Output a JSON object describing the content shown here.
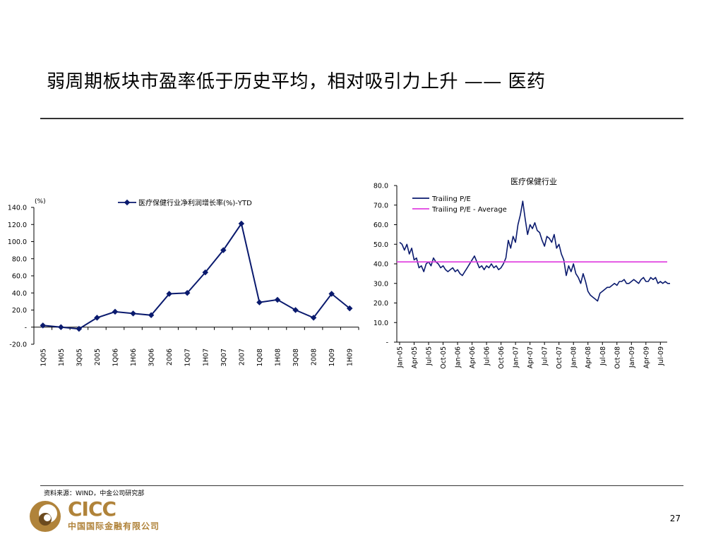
{
  "slide": {
    "title": "弱周期板块市盈率低于历史平均，相对吸引力上升 —— 医药",
    "source": "资料来源：WIND，中金公司研究部",
    "page_number": "27",
    "logo_text": "CICC",
    "logo_cn": "中国国际金融有限公司"
  },
  "colors": {
    "navy": "#0a1a6e",
    "magenta": "#e040e0",
    "logo_gold": "#b0833a",
    "logo_dark": "#6b4a1e"
  },
  "chart_data": [
    {
      "type": "line",
      "title": "",
      "y_unit_label": "(%)",
      "legend_position": "top",
      "categories": [
        "1Q05",
        "1H05",
        "3Q05",
        "2005",
        "1Q06",
        "1H06",
        "3Q06",
        "2006",
        "1Q07",
        "1H07",
        "3Q07",
        "2007",
        "1Q08",
        "1H08",
        "3Q08",
        "2008",
        "1Q09",
        "1H09"
      ],
      "series": [
        {
          "name": "医疗保健行业净利润增长率(%)-YTD",
          "color": "#0a1a6e",
          "values": [
            2,
            0,
            -2,
            11,
            18,
            16,
            14,
            39,
            40,
            64,
            90,
            121,
            29,
            32,
            20,
            11,
            39,
            22
          ]
        }
      ],
      "ylim": [
        -20,
        140
      ],
      "yticks": [
        "-20.0",
        "-",
        "20.0",
        "40.0",
        "60.0",
        "80.0",
        "100.0",
        "120.0",
        "140.0"
      ],
      "ytick_values": [
        -20,
        0,
        20,
        40,
        60,
        80,
        100,
        120,
        140
      ],
      "grid": false
    },
    {
      "type": "line",
      "title": "医疗保健行业",
      "legend_position": "top",
      "x_labels": [
        "Jan-05",
        "Apr-05",
        "Jul-05",
        "Oct-05",
        "Jan-06",
        "Apr-06",
        "Jul-06",
        "Oct-06",
        "Jan-07",
        "Apr-07",
        "Jul-07",
        "Oct-07",
        "Jan-08",
        "Apr-08",
        "Jul-08",
        "Oct-08",
        "Jan-09",
        "Apr-09",
        "Jul-09"
      ],
      "ylim": [
        0,
        80
      ],
      "yticks": [
        "-",
        "10.0",
        "20.0",
        "30.0",
        "40.0",
        "50.0",
        "60.0",
        "70.0",
        "80.0"
      ],
      "ytick_values": [
        0,
        10,
        20,
        30,
        40,
        50,
        60,
        70,
        80
      ],
      "grid": false,
      "series": [
        {
          "name": "Trailing P/E",
          "color": "#0a1a6e",
          "x_months": [
            0,
            0.5,
            1,
            1.5,
            2,
            2.5,
            3,
            3.5,
            4,
            4.5,
            5,
            5.5,
            6,
            6.5,
            7,
            7.5,
            8,
            8.5,
            9,
            9.5,
            10,
            10.5,
            11,
            11.5,
            12,
            12.5,
            13,
            13.5,
            14,
            14.5,
            15,
            15.5,
            16,
            16.5,
            17,
            17.5,
            18,
            18.5,
            19,
            19.5,
            20,
            20.5,
            21,
            21.5,
            22,
            22.5,
            23,
            23.5,
            24,
            24.5,
            25,
            25.5,
            26,
            26.5,
            27,
            27.5,
            28,
            28.5,
            29,
            29.5,
            30,
            30.5,
            31,
            31.5,
            32,
            32.5,
            33,
            33.5,
            34,
            34.5,
            35,
            35.5,
            36,
            36.5,
            37,
            37.5,
            38,
            38.5,
            39,
            39.5,
            40,
            40.5,
            41,
            41.5,
            42,
            42.5,
            43,
            43.5,
            44,
            44.5,
            45,
            45.5,
            46,
            46.5,
            47,
            47.5,
            48,
            48.5,
            49,
            49.5,
            50,
            50.5,
            51,
            51.5,
            52,
            52.5,
            53,
            53.5,
            54,
            54.5,
            55,
            55.5,
            56
          ],
          "values": [
            51,
            50,
            47,
            50,
            45,
            48,
            42,
            43,
            38,
            39,
            36,
            40,
            41,
            39,
            43,
            41,
            40,
            38,
            39,
            37,
            36,
            37,
            38,
            36,
            37,
            35,
            34,
            36,
            38,
            40,
            42,
            44,
            41,
            38,
            39,
            37,
            39,
            38,
            40,
            38,
            39,
            37,
            38,
            40,
            43,
            52,
            48,
            54,
            51,
            60,
            65,
            72,
            63,
            55,
            60,
            58,
            61,
            57,
            56,
            52,
            49,
            54,
            53,
            51,
            55,
            48,
            50,
            45,
            42,
            34,
            39,
            36,
            40,
            35,
            33,
            30,
            35,
            31,
            26,
            24,
            23,
            22,
            21,
            25,
            26,
            27,
            28,
            28,
            29,
            30,
            29,
            31,
            31,
            32,
            30,
            30,
            31,
            32,
            31,
            30,
            32,
            33,
            31,
            31,
            33,
            32,
            33,
            30,
            31,
            30,
            31,
            30,
            30
          ]
        },
        {
          "name": "Trailing P/E - Average",
          "color": "#e040e0",
          "values": [
            41
          ]
        }
      ]
    }
  ]
}
